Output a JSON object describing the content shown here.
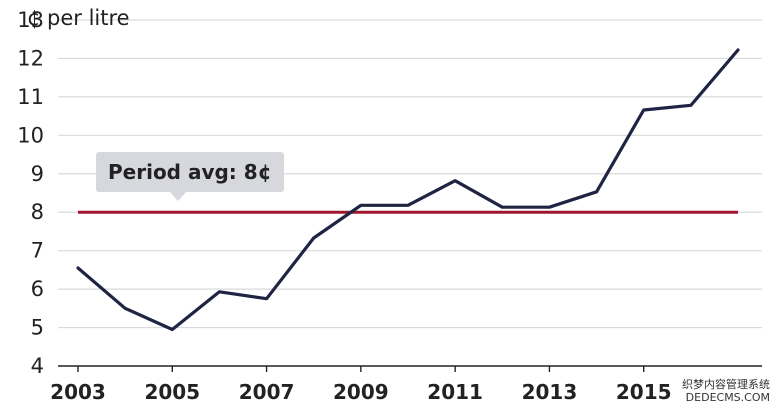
{
  "chart_data": {
    "type": "line",
    "unit_label": "¢ per litre",
    "x_ticks": [
      "2003",
      "2005",
      "2007",
      "2009",
      "2011",
      "2013",
      "2015"
    ],
    "y_ticks": [
      4,
      5,
      6,
      7,
      8,
      9,
      10,
      11,
      12,
      13
    ],
    "xlim": [
      2003,
      2017
    ],
    "ylim": [
      4,
      13
    ],
    "grid": true,
    "series": [
      {
        "x": [
          2003,
          2004,
          2005,
          2006,
          2007,
          2008,
          2009,
          2010,
          2011,
          2012,
          2013,
          2014,
          2015,
          2016,
          2017
        ],
        "values": [
          6.55,
          5.5,
          4.95,
          5.93,
          5.75,
          7.33,
          8.18,
          8.18,
          8.82,
          8.13,
          8.13,
          8.53,
          10.66,
          10.78,
          12.22
        ],
        "color": "#1f2443"
      }
    ],
    "reference_line": {
      "value": 8,
      "label": "Period avg: 8¢",
      "color": "#a0152f"
    }
  },
  "watermark": {
    "line1": "织梦内容管理系统",
    "line2": "DEDECMS.COM"
  }
}
